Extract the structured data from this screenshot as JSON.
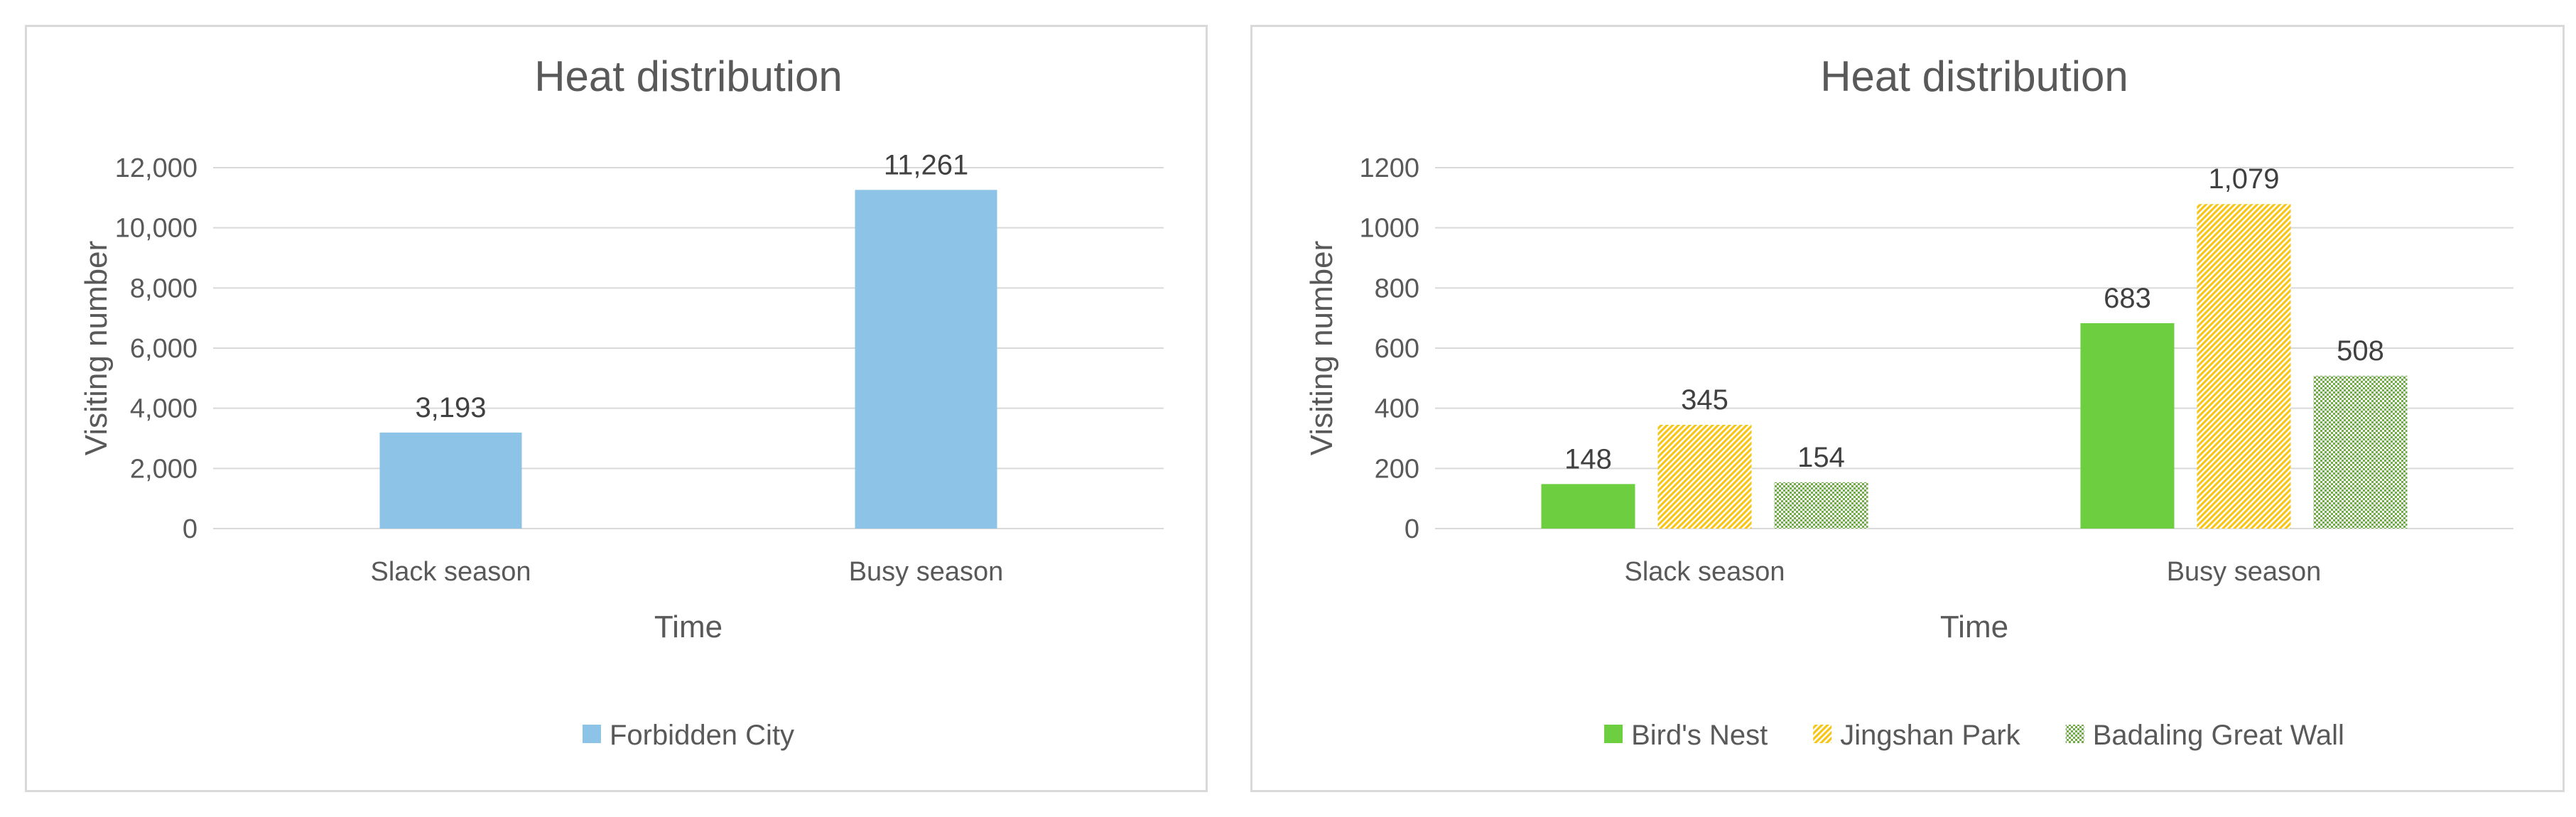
{
  "chart_data": [
    {
      "type": "bar",
      "title": "Heat distribution",
      "xlabel": "Time",
      "ylabel": "Visiting number",
      "categories": [
        "Slack season",
        "Busy season"
      ],
      "series": [
        {
          "name": "Forbidden City",
          "values": [
            3193,
            11261
          ],
          "value_labels": [
            "3,193",
            "11,261"
          ],
          "color": "#8dc3e6",
          "pattern": "solid"
        }
      ],
      "ylim": [
        0,
        12000
      ],
      "yticks": [
        0,
        2000,
        4000,
        6000,
        8000,
        10000,
        12000
      ],
      "ytick_labels": [
        "0",
        "2,000",
        "4,000",
        "6,000",
        "8,000",
        "10,000",
        "12,000"
      ],
      "grid": true,
      "legend": "bottom"
    },
    {
      "type": "bar",
      "title": "Heat distribution",
      "xlabel": "Time",
      "ylabel": "Visiting number",
      "categories": [
        "Slack season",
        "Busy season"
      ],
      "series": [
        {
          "name": "Bird's Nest",
          "values": [
            148,
            683
          ],
          "value_labels": [
            "148",
            "683"
          ],
          "color": "#6dcf3f",
          "pattern": "solid"
        },
        {
          "name": "Jingshan Park",
          "values": [
            345,
            1079
          ],
          "value_labels": [
            "345",
            "1,079"
          ],
          "color": "#f5c518",
          "pattern": "diagonal"
        },
        {
          "name": "Badaling Great Wall",
          "values": [
            154,
            508
          ],
          "value_labels": [
            "154",
            "508"
          ],
          "color": "#70ad47",
          "pattern": "checker"
        }
      ],
      "ylim": [
        0,
        1200
      ],
      "yticks": [
        0,
        200,
        400,
        600,
        800,
        1000,
        1200
      ],
      "ytick_labels": [
        "0",
        "200",
        "400",
        "600",
        "800",
        "1000",
        "1200"
      ],
      "grid": true,
      "legend": "bottom"
    }
  ]
}
